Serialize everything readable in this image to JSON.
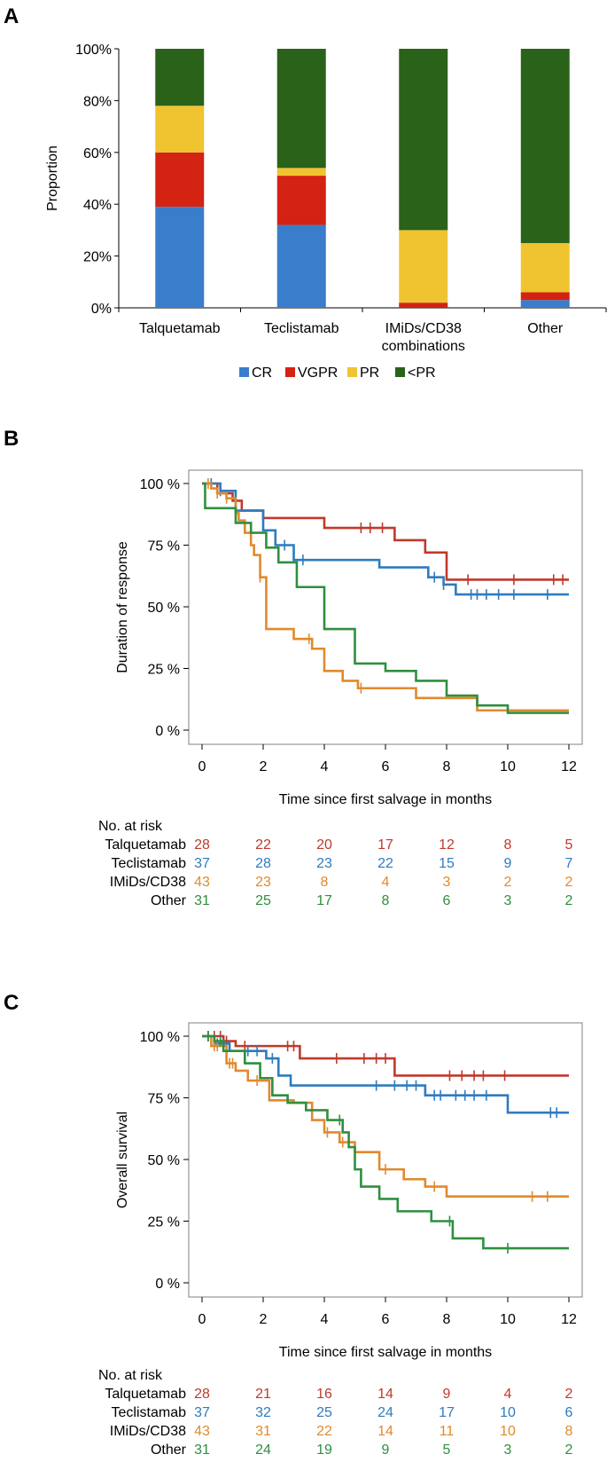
{
  "colors": {
    "cr": "#3a7dcb",
    "vgpr": "#d42213",
    "pr": "#f0c330",
    "lt_pr": "#2a6219",
    "talquetamab": "#c0392b",
    "teclistamab": "#2f7bbf",
    "imids": "#e08a2e",
    "other": "#2f8f3f"
  },
  "chart_data": [
    {
      "panel": "A",
      "type": "bar",
      "stacked": true,
      "ylabel": "Proportion",
      "ylim": [
        0,
        100
      ],
      "yticks": [
        "0%",
        "20%",
        "40%",
        "60%",
        "80%",
        "100%"
      ],
      "categories": [
        "Talquetamab",
        "Teclistamab",
        "IMiDs/CD38\ncombinations",
        "Other"
      ],
      "category_lines": [
        [
          "Talquetamab"
        ],
        [
          "Teclistamab"
        ],
        [
          "IMiDs/CD38",
          "combinations"
        ],
        [
          "Other"
        ]
      ],
      "series": [
        {
          "name": "CR",
          "color": "#3a7dcb",
          "values": [
            39,
            32,
            0,
            3
          ]
        },
        {
          "name": "VGPR",
          "color": "#d42213",
          "values": [
            21,
            19,
            2,
            3
          ]
        },
        {
          "name": "PR",
          "color": "#f0c330",
          "values": [
            18,
            3,
            28,
            19
          ]
        },
        {
          "name": "<PR",
          "color": "#2a6219",
          "values": [
            22,
            46,
            70,
            75
          ]
        }
      ],
      "legend": "bottom"
    },
    {
      "panel": "B",
      "type": "line",
      "step": true,
      "ylabel": "Duration of response",
      "xlabel": "Time since first salvage in months",
      "xlim": [
        0,
        12
      ],
      "ylim": [
        0,
        100
      ],
      "xticks": [
        "0",
        "2",
        "4",
        "6",
        "8",
        "10",
        "12"
      ],
      "yticks": [
        "0 %",
        "25 %",
        "50 %",
        "75 %",
        "100 %"
      ],
      "risk_title": "No. at risk",
      "series": [
        {
          "name": "Talquetamab",
          "color": "#c0392b",
          "steps": [
            [
              0,
              100
            ],
            [
              0.5,
              96
            ],
            [
              1,
              93
            ],
            [
              1.3,
              89
            ],
            [
              2,
              86
            ],
            [
              4,
              82
            ],
            [
              6.3,
              77
            ],
            [
              7.3,
              72
            ],
            [
              8,
              61
            ],
            [
              12,
              61
            ]
          ],
          "censors": [
            5.2,
            5.5,
            5.9,
            8.7,
            10.2,
            11.5,
            11.8
          ],
          "risk": [
            28,
            22,
            20,
            17,
            12,
            8,
            5
          ]
        },
        {
          "name": "Teclistamab",
          "color": "#2f7bbf",
          "steps": [
            [
              0,
              100
            ],
            [
              0.6,
              97
            ],
            [
              1.1,
              89
            ],
            [
              2,
              81
            ],
            [
              2.4,
              75
            ],
            [
              3,
              69
            ],
            [
              5.8,
              66
            ],
            [
              7.4,
              62
            ],
            [
              7.9,
              59
            ],
            [
              8.3,
              55
            ],
            [
              12,
              55
            ]
          ],
          "censors": [
            0.3,
            0.6,
            2.7,
            3.3,
            7.6,
            7.9,
            8.8,
            9.0,
            9.3,
            9.7,
            10.2,
            11.3
          ],
          "risk": [
            37,
            28,
            23,
            22,
            15,
            9,
            7
          ]
        },
        {
          "name": "IMiDs/CD38",
          "color": "#e08a2e",
          "steps": [
            [
              0,
              100
            ],
            [
              0.3,
              98
            ],
            [
              0.5,
              96
            ],
            [
              0.8,
              94
            ],
            [
              1.1,
              88
            ],
            [
              1.2,
              85
            ],
            [
              1.4,
              80
            ],
            [
              1.6,
              75
            ],
            [
              1.7,
              71
            ],
            [
              1.9,
              62
            ],
            [
              2.1,
              41
            ],
            [
              3,
              37
            ],
            [
              3.6,
              33
            ],
            [
              4,
              24
            ],
            [
              4.6,
              20
            ],
            [
              5.1,
              17
            ],
            [
              7,
              13
            ],
            [
              9,
              8
            ],
            [
              12,
              8
            ]
          ],
          "censors": [
            0.2,
            0.5,
            0.8,
            1.1,
            1.9,
            3.5,
            5.2
          ],
          "risk": [
            43,
            23,
            8,
            4,
            3,
            2,
            2
          ]
        },
        {
          "name": "Other",
          "color": "#2f8f3f",
          "steps": [
            [
              0,
              100
            ],
            [
              0.1,
              90
            ],
            [
              1.1,
              84
            ],
            [
              1.6,
              80
            ],
            [
              2.1,
              74
            ],
            [
              2.5,
              68
            ],
            [
              3.1,
              58
            ],
            [
              4,
              41
            ],
            [
              5,
              27
            ],
            [
              6,
              24
            ],
            [
              7,
              20
            ],
            [
              8,
              14
            ],
            [
              9,
              10
            ],
            [
              10,
              7
            ],
            [
              12,
              7
            ]
          ],
          "censors": [],
          "risk": [
            31,
            25,
            17,
            8,
            6,
            3,
            2
          ]
        }
      ]
    },
    {
      "panel": "C",
      "type": "line",
      "step": true,
      "ylabel": "Overall survival",
      "xlabel": "Time since first salvage in months",
      "xlim": [
        0,
        12
      ],
      "ylim": [
        0,
        100
      ],
      "xticks": [
        "0",
        "2",
        "4",
        "6",
        "8",
        "10",
        "12"
      ],
      "yticks": [
        "0 %",
        "25 %",
        "50 %",
        "75 %",
        "100 %"
      ],
      "risk_title": "No. at risk",
      "series": [
        {
          "name": "Talquetamab",
          "color": "#c0392b",
          "steps": [
            [
              0,
              100
            ],
            [
              0.7,
              98
            ],
            [
              1.1,
              96
            ],
            [
              3.2,
              91
            ],
            [
              6.3,
              84
            ],
            [
              12,
              84
            ]
          ],
          "censors": [
            0.2,
            0.4,
            0.6,
            0.8,
            1.4,
            2.8,
            3.0,
            4.4,
            5.3,
            5.7,
            6.0,
            8.1,
            8.5,
            8.9,
            9.2,
            9.9
          ],
          "risk": [
            28,
            21,
            16,
            14,
            9,
            4,
            2
          ]
        },
        {
          "name": "Teclistamab",
          "color": "#2f7bbf",
          "steps": [
            [
              0,
              100
            ],
            [
              0.4,
              97
            ],
            [
              0.9,
              94
            ],
            [
              2.1,
              91
            ],
            [
              2.5,
              84
            ],
            [
              2.9,
              80
            ],
            [
              7.3,
              76
            ],
            [
              10,
              69
            ],
            [
              12,
              69
            ]
          ],
          "censors": [
            0.2,
            0.5,
            0.7,
            1.5,
            1.8,
            2.3,
            5.7,
            6.3,
            6.7,
            7.0,
            7.6,
            7.8,
            8.3,
            8.6,
            8.9,
            9.3,
            11.4,
            11.6
          ],
          "risk": [
            37,
            32,
            25,
            24,
            17,
            10,
            6
          ]
        },
        {
          "name": "IMiDs/CD38",
          "color": "#e08a2e",
          "steps": [
            [
              0,
              100
            ],
            [
              0.3,
              96
            ],
            [
              0.8,
              89
            ],
            [
              1.1,
              86
            ],
            [
              1.5,
              82
            ],
            [
              2.2,
              74
            ],
            [
              3,
              73
            ],
            [
              3.6,
              66
            ],
            [
              4,
              61
            ],
            [
              4.5,
              57
            ],
            [
              5,
              53
            ],
            [
              5.8,
              46
            ],
            [
              6.6,
              42
            ],
            [
              7.3,
              39
            ],
            [
              8,
              35
            ],
            [
              12,
              35
            ]
          ],
          "censors": [
            0.4,
            0.5,
            0.9,
            1.0,
            1.8,
            4.1,
            4.6,
            6.0,
            7.6,
            10.8,
            11.3
          ],
          "risk": [
            43,
            31,
            22,
            14,
            11,
            10,
            8
          ]
        },
        {
          "name": "Other",
          "color": "#2f8f3f",
          "steps": [
            [
              0,
              100
            ],
            [
              0.4,
              98
            ],
            [
              0.7,
              94
            ],
            [
              1.4,
              89
            ],
            [
              1.9,
              83
            ],
            [
              2.3,
              76
            ],
            [
              2.8,
              73
            ],
            [
              3.4,
              70
            ],
            [
              4.1,
              66
            ],
            [
              4.6,
              61
            ],
            [
              4.8,
              55
            ],
            [
              5,
              46
            ],
            [
              5.2,
              39
            ],
            [
              5.8,
              34
            ],
            [
              6.4,
              29
            ],
            [
              7.5,
              25
            ],
            [
              8.2,
              18
            ],
            [
              9.2,
              14
            ],
            [
              12,
              14
            ]
          ],
          "censors": [
            0.2,
            0.6,
            4.5,
            8.1,
            10
          ],
          "risk": [
            31,
            24,
            19,
            9,
            5,
            3,
            2
          ]
        }
      ]
    }
  ]
}
